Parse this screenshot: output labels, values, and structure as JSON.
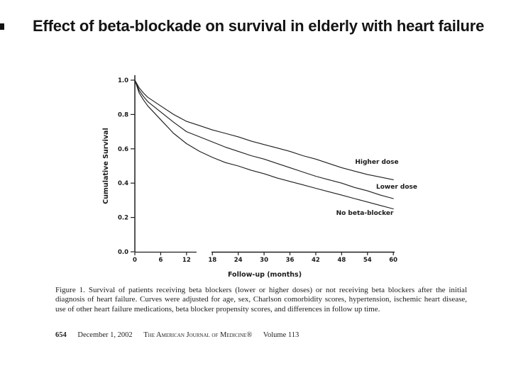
{
  "slide": {
    "title": "Effect of beta-blockade on survival in elderly with heart failure"
  },
  "chart_data": {
    "type": "line",
    "title": "",
    "xlabel": "Follow-up (months)",
    "ylabel": "Cumulative Survival",
    "xlim": [
      0,
      60
    ],
    "ylim": [
      0.0,
      1.0
    ],
    "grid": false,
    "legend_position": "end-of-line labels",
    "x_ticks": [
      0,
      6,
      12,
      18,
      24,
      30,
      36,
      42,
      48,
      54,
      60
    ],
    "y_ticks": [
      "1.0",
      "0.8",
      "0.6",
      "0.4",
      "0.2",
      "0.0"
    ],
    "x": [
      0,
      1,
      2,
      3,
      6,
      9,
      12,
      15,
      18,
      21,
      24,
      27,
      30,
      33,
      36,
      39,
      42,
      45,
      48,
      51,
      54,
      57,
      60
    ],
    "series": [
      {
        "name": "Higher dose",
        "values": [
          1.0,
          0.955,
          0.925,
          0.9,
          0.85,
          0.8,
          0.76,
          0.735,
          0.71,
          0.69,
          0.67,
          0.645,
          0.625,
          0.605,
          0.585,
          0.56,
          0.54,
          0.515,
          0.49,
          0.47,
          0.45,
          0.435,
          0.42
        ]
      },
      {
        "name": "Lower dose",
        "values": [
          1.0,
          0.94,
          0.905,
          0.875,
          0.815,
          0.755,
          0.7,
          0.67,
          0.64,
          0.61,
          0.585,
          0.56,
          0.54,
          0.515,
          0.49,
          0.465,
          0.44,
          0.42,
          0.4,
          0.375,
          0.355,
          0.33,
          0.31
        ]
      },
      {
        "name": "No beta-blocker",
        "values": [
          1.0,
          0.925,
          0.885,
          0.85,
          0.77,
          0.69,
          0.63,
          0.585,
          0.55,
          0.52,
          0.5,
          0.475,
          0.455,
          0.43,
          0.41,
          0.39,
          0.37,
          0.35,
          0.33,
          0.31,
          0.29,
          0.27,
          0.25
        ]
      }
    ],
    "line_color": "#1f1f1f"
  },
  "caption": {
    "label": "Figure 1.",
    "text": "Survival of patients receiving beta blockers (lower or higher doses) or not receiving beta blockers after the initial diagnosis of heart failure. Curves were adjusted for age, sex, Charlson comorbidity scores, hypertension, ischemic heart disease, use of other heart failure medications, beta blocker propensity scores, and differences in follow up time."
  },
  "footer": {
    "page_number": "654",
    "date": "December 1, 2002",
    "journal": "The American Journal of Medicine®",
    "volume": "Volume 113"
  }
}
